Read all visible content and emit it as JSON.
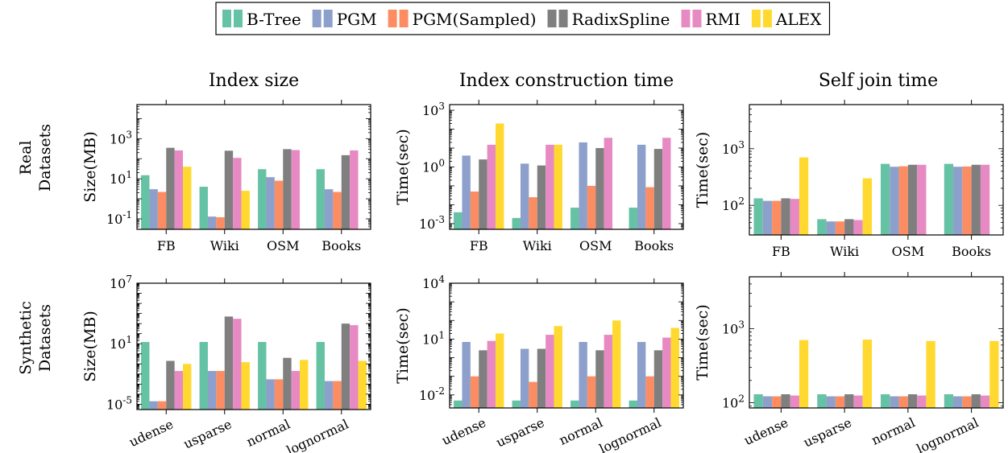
{
  "colors": {
    "B-Tree": "#66c2a5",
    "PGM": "#8da0cb",
    "PGM(Sampled)": "#fc8d62",
    "RadixSpline": "#7f7f7f",
    "RMI": "#e78ac3",
    "ALEX": "#ffd92f"
  },
  "legend": [
    "B-Tree",
    "PGM",
    "PGM(Sampled)",
    "RadixSpline",
    "RMI",
    "ALEX"
  ],
  "column_titles": [
    "Index size",
    "Index construction time",
    "Self join time"
  ],
  "row_labels": [
    {
      "line1": "Real",
      "line2": "Datasets"
    },
    {
      "line1": "Synthetic",
      "line2": "Datasets"
    }
  ],
  "chart_data": [
    {
      "type": "bar",
      "log_scale": true,
      "ylabel": "Size(MB)",
      "ylim": [
        0.03,
        50000
      ],
      "yticks": [
        0.1,
        10,
        1000
      ],
      "categories": [
        "FB",
        "Wiki",
        "OSM",
        "Books"
      ],
      "series": [
        {
          "name": "B-Tree",
          "values": [
            15,
            4,
            30,
            30
          ]
        },
        {
          "name": "PGM",
          "values": [
            3,
            0.13,
            12,
            3
          ]
        },
        {
          "name": "PGM(Sampled)",
          "values": [
            2.2,
            0.12,
            8,
            2.2
          ]
        },
        {
          "name": "RadixSpline",
          "values": [
            350,
            250,
            300,
            150
          ]
        },
        {
          "name": "RMI",
          "values": [
            260,
            110,
            270,
            260
          ]
        },
        {
          "name": "ALEX",
          "values": [
            40,
            2.5,
            null,
            null
          ]
        }
      ]
    },
    {
      "type": "bar",
      "log_scale": true,
      "ylabel": "Time(sec)",
      "ylim": [
        0.0005,
        2000
      ],
      "yticks": [
        0.001,
        1,
        1000
      ],
      "categories": [
        "FB",
        "Wiki",
        "OSM",
        "Books"
      ],
      "series": [
        {
          "name": "B-Tree",
          "values": [
            0.004,
            0.002,
            0.007,
            0.007
          ]
        },
        {
          "name": "PGM",
          "values": [
            4,
            1.5,
            20,
            15
          ]
        },
        {
          "name": "PGM(Sampled)",
          "values": [
            0.05,
            0.025,
            0.1,
            0.085
          ]
        },
        {
          "name": "RadixSpline",
          "values": [
            2.5,
            1.2,
            10,
            9
          ]
        },
        {
          "name": "RMI",
          "values": [
            15,
            15,
            35,
            35
          ]
        },
        {
          "name": "ALEX",
          "values": [
            200,
            15,
            null,
            null
          ]
        }
      ]
    },
    {
      "type": "bar",
      "log_scale": true,
      "ylabel": "Time(sec)",
      "ylim": [
        30,
        6000
      ],
      "yticks": [
        100,
        1000
      ],
      "categories": [
        "FB",
        "Wiki",
        "OSM",
        "Books"
      ],
      "series": [
        {
          "name": "B-Tree",
          "values": [
            133,
            57,
            540,
            540
          ]
        },
        {
          "name": "PGM",
          "values": [
            120,
            52,
            480,
            480
          ]
        },
        {
          "name": "PGM(Sampled)",
          "values": [
            120,
            52,
            490,
            485
          ]
        },
        {
          "name": "RadixSpline",
          "values": [
            133,
            57,
            520,
            520
          ]
        },
        {
          "name": "RMI",
          "values": [
            130,
            55,
            520,
            520
          ]
        },
        {
          "name": "ALEX",
          "values": [
            700,
            300,
            null,
            null
          ]
        }
      ]
    },
    {
      "type": "bar",
      "log_scale": true,
      "ylabel": "Size(MB)",
      "ylim": [
        3e-06,
        10000000
      ],
      "yticks": [
        1e-05,
        10,
        10000000
      ],
      "categories": [
        "udense",
        "usparse",
        "normal",
        "lognormal"
      ],
      "series": [
        {
          "name": "B-Tree",
          "values": [
            15,
            15,
            15,
            15
          ]
        },
        {
          "name": "PGM",
          "values": [
            2e-05,
            0.02,
            0.003,
            0.002
          ]
        },
        {
          "name": "PGM(Sampled)",
          "values": [
            2e-05,
            0.02,
            0.003,
            0.002
          ]
        },
        {
          "name": "RadixSpline",
          "values": [
            0.2,
            5000,
            0.4,
            1000
          ]
        },
        {
          "name": "RMI",
          "values": [
            0.02,
            3000,
            0.02,
            700
          ]
        },
        {
          "name": "ALEX",
          "values": [
            0.1,
            0.15,
            0.25,
            0.2
          ]
        }
      ]
    },
    {
      "type": "bar",
      "log_scale": true,
      "ylabel": "Time(sec)",
      "ylim": [
        0.002,
        10000
      ],
      "yticks": [
        0.01,
        10,
        10000
      ],
      "categories": [
        "udense",
        "usparse",
        "normal",
        "lognormal"
      ],
      "series": [
        {
          "name": "B-Tree",
          "values": [
            0.005,
            0.005,
            0.005,
            0.005
          ]
        },
        {
          "name": "PGM",
          "values": [
            7,
            3,
            7,
            7
          ]
        },
        {
          "name": "PGM(Sampled)",
          "values": [
            0.1,
            0.05,
            0.1,
            0.1
          ]
        },
        {
          "name": "RadixSpline",
          "values": [
            2.5,
            3,
            2.5,
            2.5
          ]
        },
        {
          "name": "RMI",
          "values": [
            8,
            17,
            17,
            12
          ]
        },
        {
          "name": "ALEX",
          "values": [
            20,
            50,
            100,
            40
          ]
        }
      ]
    },
    {
      "type": "bar",
      "log_scale": true,
      "ylabel": "Time(sec)",
      "ylim": [
        85,
        5000
      ],
      "yticks": [
        100,
        1000
      ],
      "categories": [
        "udense",
        "usparse",
        "normal",
        "lognormal"
      ],
      "series": [
        {
          "name": "B-Tree",
          "values": [
            130,
            130,
            130,
            130
          ]
        },
        {
          "name": "PGM",
          "values": [
            122,
            122,
            122,
            122
          ]
        },
        {
          "name": "PGM(Sampled)",
          "values": [
            122,
            122,
            122,
            122
          ]
        },
        {
          "name": "RadixSpline",
          "values": [
            130,
            130,
            130,
            130
          ]
        },
        {
          "name": "RMI",
          "values": [
            125,
            125,
            125,
            125
          ]
        },
        {
          "name": "ALEX",
          "values": [
            700,
            710,
            680,
            680
          ]
        }
      ]
    }
  ]
}
